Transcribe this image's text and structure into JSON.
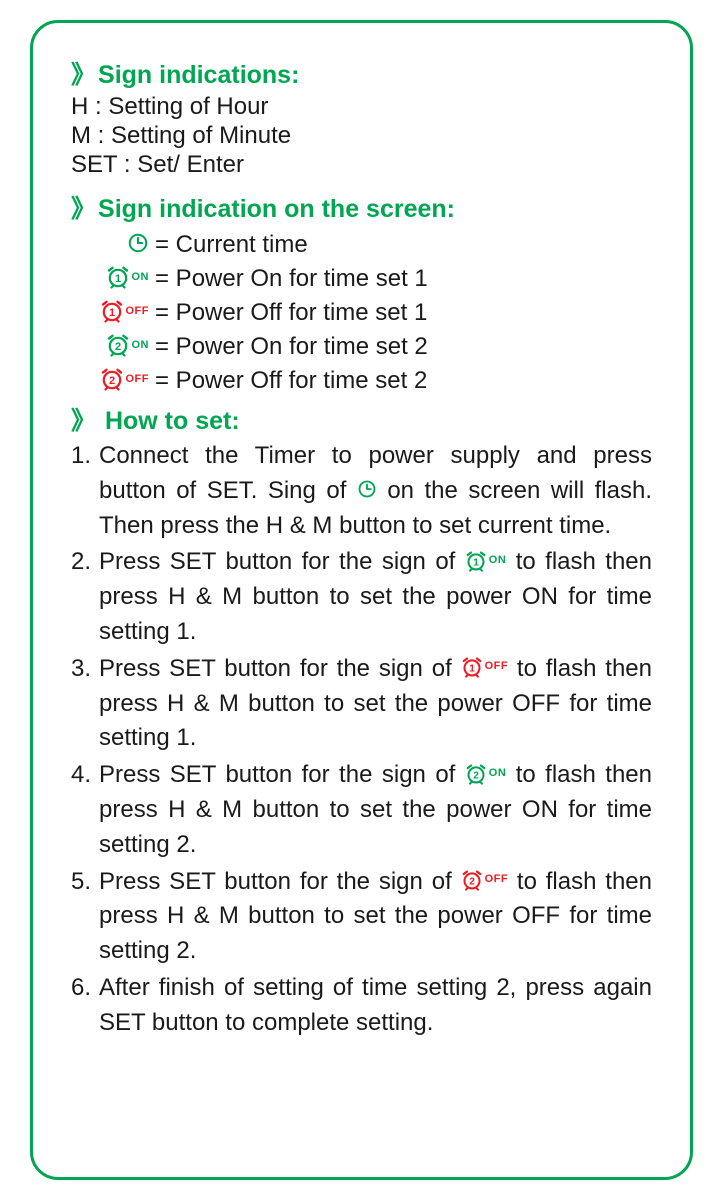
{
  "colors": {
    "border": "#00a651",
    "heading": "#00a651",
    "text": "#1a1a1a",
    "green": "#00a651",
    "red": "#ed1c24"
  },
  "section1": {
    "title": "Sign indications:",
    "lines": [
      "H : Setting of Hour",
      "M : Setting of Minute",
      "SET : Set/ Enter"
    ]
  },
  "section2": {
    "title": "Sign indication on the screen:",
    "rows": [
      {
        "icon": "clock",
        "color": "green",
        "tag": "",
        "text": "= Current time"
      },
      {
        "icon": "alarm",
        "num": "1",
        "color": "green",
        "tag": "ON",
        "text": "= Power On for time set 1"
      },
      {
        "icon": "alarm",
        "num": "1",
        "color": "red",
        "tag": "OFF",
        "text": "= Power Off for time set 1"
      },
      {
        "icon": "alarm",
        "num": "2",
        "color": "green",
        "tag": "ON",
        "text": "= Power On for time set 2"
      },
      {
        "icon": "alarm",
        "num": "2",
        "color": "red",
        "tag": "OFF",
        "text": "= Power Off for time set 2"
      }
    ]
  },
  "section3": {
    "title": "How to set:",
    "steps": [
      {
        "num": "1.",
        "parts": [
          {
            "t": "Connect the Timer to power supply and press button of SET. Sing of "
          },
          {
            "icon": "clock",
            "color": "green"
          },
          {
            "t": " on the screen will flash. Then press the H & M button to set current time."
          }
        ]
      },
      {
        "num": "2.",
        "parts": [
          {
            "t": "Press SET button for the sign of "
          },
          {
            "icon": "alarm",
            "num": "1",
            "color": "green",
            "tag": "ON"
          },
          {
            "t": " to flash then press H & M button to set the power ON for time setting 1."
          }
        ]
      },
      {
        "num": "3.",
        "parts": [
          {
            "t": "Press SET button for the sign of "
          },
          {
            "icon": "alarm",
            "num": "1",
            "color": "red",
            "tag": "OFF"
          },
          {
            "t": " to flash then press H & M button to set the power OFF for time setting 1."
          }
        ]
      },
      {
        "num": "4.",
        "parts": [
          {
            "t": "Press SET button for the sign of "
          },
          {
            "icon": "alarm",
            "num": "2",
            "color": "green",
            "tag": "ON"
          },
          {
            "t": " to flash then press H & M button to set the power ON for time setting 2."
          }
        ]
      },
      {
        "num": "5.",
        "parts": [
          {
            "t": "Press SET button for the sign of "
          },
          {
            "icon": "alarm",
            "num": "2",
            "color": "red",
            "tag": "OFF"
          },
          {
            "t": " to flash then press H & M button to set the power OFF for time setting 2."
          }
        ]
      },
      {
        "num": "6.",
        "parts": [
          {
            "t": "After finish of setting of time setting 2, press again SET button to complete setting."
          }
        ]
      }
    ]
  }
}
